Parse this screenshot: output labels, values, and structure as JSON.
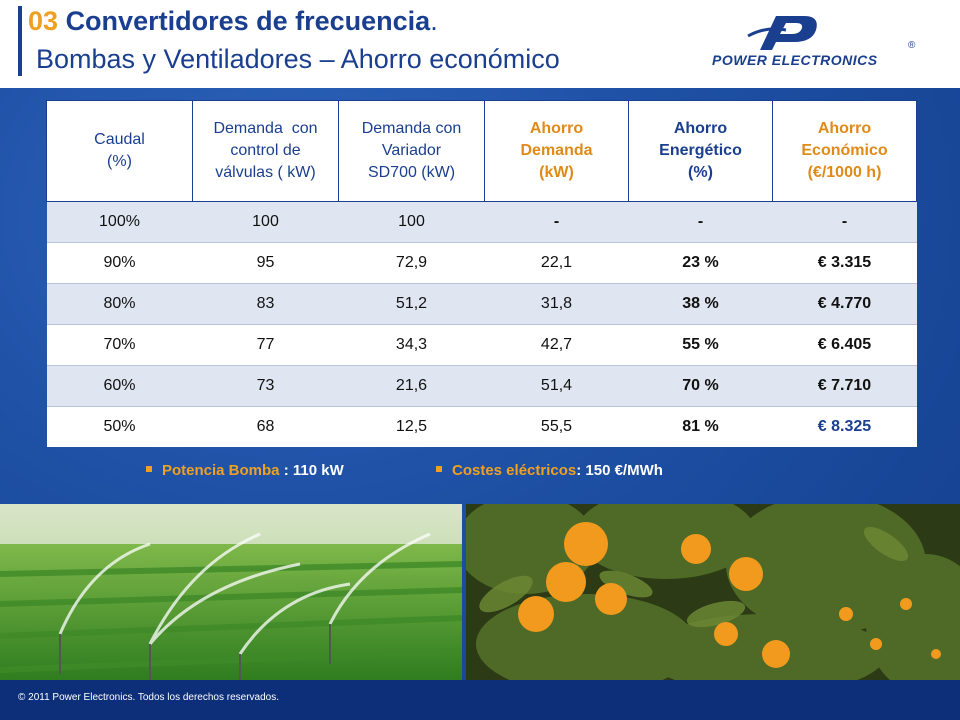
{
  "header": {
    "title_number": "03",
    "title_main": "Convertidores de frecuencia",
    "title_dot": ".",
    "subtitle": "Bombas y Ventiladores – Ahorro económico"
  },
  "logo": {
    "text": "POWER ELECTRONICS",
    "registered": "®",
    "icon": "power-electronics-logo-icon"
  },
  "table": {
    "headers": [
      {
        "line1": "Caudal",
        "line2": "(%)",
        "line3": ""
      },
      {
        "line1": "Demanda  con",
        "line2": "control de",
        "line3": "válvulas ( kW)"
      },
      {
        "line1": "Demanda con",
        "line2": "Variador",
        "line3": "SD700 (kW)"
      },
      {
        "line1": "Ahorro",
        "line2": "Demanda",
        "line3": "(kW)"
      },
      {
        "line1": "Ahorro",
        "line2": "Energético",
        "line3": "(%)"
      },
      {
        "line1": "Ahorro",
        "line2": "Económico",
        "line3": "(€/1000 h)"
      }
    ],
    "rows": [
      [
        "100%",
        "100",
        "100",
        "-",
        "-",
        "-"
      ],
      [
        "90%",
        "95",
        "72,9",
        "22,1",
        "23 %",
        "€ 3.315"
      ],
      [
        "80%",
        "83",
        "51,2",
        "31,8",
        "38 %",
        "€ 4.770"
      ],
      [
        "70%",
        "77",
        "34,3",
        "42,7",
        "55 %",
        "€ 6.405"
      ],
      [
        "60%",
        "73",
        "21,6",
        "51,4",
        "70 %",
        "€ 7.710"
      ],
      [
        "50%",
        "68",
        "12,5",
        "55,5",
        "81 %",
        "€ 8.325"
      ]
    ]
  },
  "notes": [
    {
      "label": "Potencia Bomba",
      "value": " : 110 kW"
    },
    {
      "label": "Costes eléctricos",
      "value": ": 150 €/MWh"
    }
  ],
  "images": {
    "left": "irrigation-sprinklers-field",
    "right": "orange-tree"
  },
  "footer": {
    "copyright": "© 2011 Power Electronics. Todos los derechos reservados."
  },
  "colors": {
    "brand_blue": "#1b3f8f",
    "accent_orange": "#f0a020",
    "background_blue": "#1d4fa3"
  }
}
